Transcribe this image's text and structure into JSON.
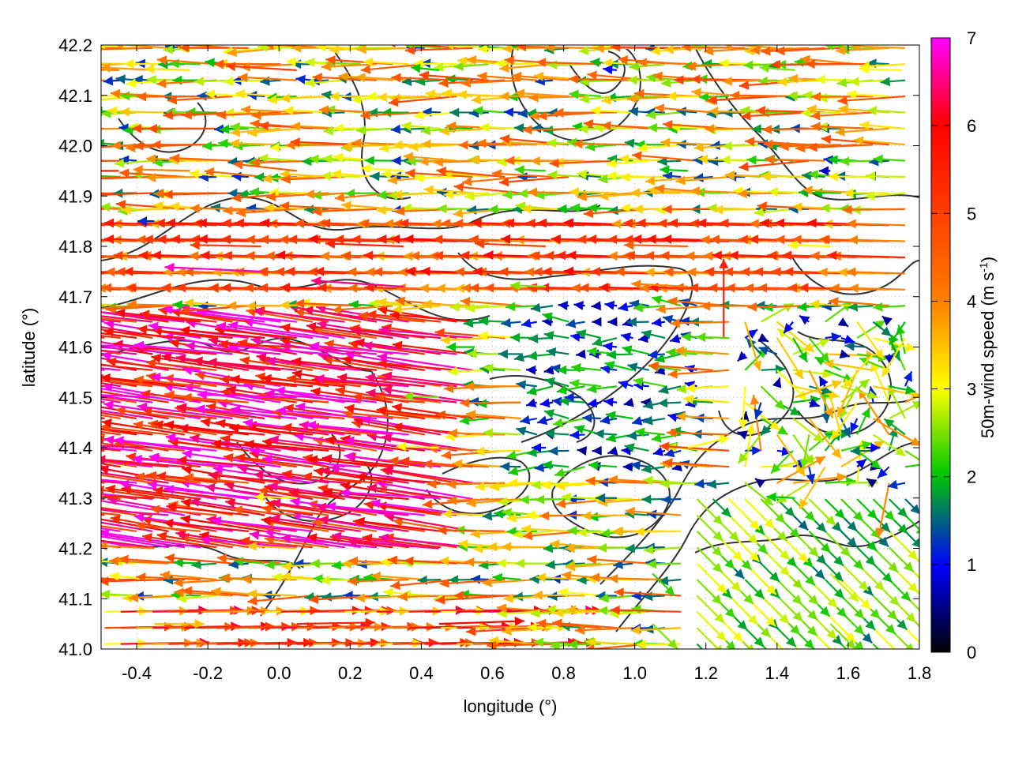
{
  "chart_data": {
    "type": "quiver",
    "title": "",
    "xlabel": "longitude (°)",
    "ylabel": "latitude (°)",
    "xlim": [
      -0.5,
      1.8
    ],
    "ylim": [
      41.0,
      42.2
    ],
    "xticks": [
      -0.4,
      -0.2,
      0.0,
      0.2,
      0.4,
      0.6,
      0.8,
      1.0,
      1.2,
      1.4,
      1.6,
      1.8
    ],
    "xtick_labels": [
      "-0.4",
      "-0.2",
      "0.0",
      "0.2",
      "0.4",
      "0.6",
      "0.8",
      "1.0",
      "1.2",
      "1.4",
      "1.6",
      "1.8"
    ],
    "yticks": [
      41.0,
      41.1,
      41.2,
      41.3,
      41.4,
      41.5,
      41.6,
      41.7,
      41.8,
      41.9,
      42.0,
      42.1,
      42.2
    ],
    "ytick_labels": [
      "41.0",
      "41.1",
      "41.2",
      "41.3",
      "41.4",
      "41.5",
      "41.6",
      "41.7",
      "41.8",
      "41.9",
      "42.0",
      "42.1",
      "42.2"
    ],
    "grid": true,
    "colorbar": {
      "label": "50m-wind speed (m s",
      "label_superscript": "-1",
      "label_suffix": ")",
      "range": [
        0,
        7
      ],
      "ticks": [
        0,
        1,
        2,
        3,
        4,
        5,
        6,
        7
      ],
      "tick_labels": [
        "0",
        "1",
        "2",
        "3",
        "4",
        "5",
        "6",
        "7"
      ],
      "colors": [
        "#000000",
        "#0000ff",
        "#00ff00",
        "#ffff00",
        "#ff8000",
        "#ff0000",
        "#ff00ff"
      ]
    },
    "series": [
      {
        "kind": "vectors",
        "units": "m s-1",
        "points": [
          {
            "lon": -0.45,
            "lat": 42.15,
            "u": -4.2,
            "v": 0.1,
            "speed": 4.2
          },
          {
            "lon": -0.35,
            "lat": 42.15,
            "u": -3.8,
            "v": 0.2,
            "speed": 3.8
          },
          {
            "lon": -0.25,
            "lat": 42.15,
            "u": -3.2,
            "v": 0.1,
            "speed": 3.2
          },
          {
            "lon": 0.05,
            "lat": 42.15,
            "u": -5.0,
            "v": 0.3,
            "speed": 5.0
          },
          {
            "lon": 0.45,
            "lat": 42.15,
            "u": -2.0,
            "v": 0.2,
            "speed": 2.0
          },
          {
            "lon": 0.95,
            "lat": 42.15,
            "u": -1.0,
            "v": 0.1,
            "speed": 1.0
          },
          {
            "lon": 1.45,
            "lat": 42.15,
            "u": -2.5,
            "v": 0.2,
            "speed": 2.5
          },
          {
            "lon": 1.75,
            "lat": 42.15,
            "u": -3.0,
            "v": 0.1,
            "speed": 3.0
          },
          {
            "lon": -0.45,
            "lat": 41.95,
            "u": -5.5,
            "v": 0.0,
            "speed": 5.5
          },
          {
            "lon": -0.25,
            "lat": 41.95,
            "u": -4.0,
            "v": 0.1,
            "speed": 4.0
          },
          {
            "lon": 0.05,
            "lat": 41.95,
            "u": -4.5,
            "v": 0.5,
            "speed": 4.5
          },
          {
            "lon": 0.35,
            "lat": 41.95,
            "u": -3.0,
            "v": 0.2,
            "speed": 3.0
          },
          {
            "lon": 0.75,
            "lat": 41.95,
            "u": -2.2,
            "v": 0.1,
            "speed": 2.2
          },
          {
            "lon": 1.15,
            "lat": 41.95,
            "u": -2.0,
            "v": 0.1,
            "speed": 2.0
          },
          {
            "lon": 1.55,
            "lat": 41.95,
            "u": -0.8,
            "v": 0.0,
            "speed": 0.8
          },
          {
            "lon": -0.35,
            "lat": 41.85,
            "u": -1.2,
            "v": 0.0,
            "speed": 1.2
          },
          {
            "lon": -0.05,
            "lat": 41.8,
            "u": -5.0,
            "v": 0.1,
            "speed": 5.0
          },
          {
            "lon": 0.35,
            "lat": 41.8,
            "u": -5.5,
            "v": 0.2,
            "speed": 5.5
          },
          {
            "lon": 0.75,
            "lat": 41.8,
            "u": -5.0,
            "v": 0.2,
            "speed": 5.0
          },
          {
            "lon": 1.15,
            "lat": 41.8,
            "u": -4.5,
            "v": 0.1,
            "speed": 4.5
          },
          {
            "lon": 1.55,
            "lat": 41.8,
            "u": -3.0,
            "v": 0.1,
            "speed": 3.0
          },
          {
            "lon": -0.05,
            "lat": 41.75,
            "u": -6.5,
            "v": 0.3,
            "speed": 6.8
          },
          {
            "lon": 0.35,
            "lat": 41.72,
            "u": -6.0,
            "v": 0.4,
            "speed": 6.5
          },
          {
            "lon": 0.75,
            "lat": 41.72,
            "u": -2.5,
            "v": 0.1,
            "speed": 2.5
          },
          {
            "lon": 1.15,
            "lat": 41.72,
            "u": -4.0,
            "v": 0.2,
            "speed": 4.0
          },
          {
            "lon": -0.35,
            "lat": 41.6,
            "u": -7.0,
            "v": 0.2,
            "speed": 7.0
          },
          {
            "lon": 0.05,
            "lat": 41.6,
            "u": -5.5,
            "v": 0.2,
            "speed": 5.5
          },
          {
            "lon": 0.55,
            "lat": 41.6,
            "u": -2.0,
            "v": 0.0,
            "speed": 2.0
          },
          {
            "lon": 0.95,
            "lat": 41.6,
            "u": -1.0,
            "v": 0.1,
            "speed": 1.0
          },
          {
            "lon": 1.25,
            "lat": 41.62,
            "u": 0.0,
            "v": 0.6,
            "speed": 5.5
          },
          {
            "lon": 1.65,
            "lat": 41.6,
            "u": -1.5,
            "v": 0.1,
            "speed": 1.5
          },
          {
            "lon": -0.35,
            "lat": 41.5,
            "u": -7.0,
            "v": 0.3,
            "speed": 7.0
          },
          {
            "lon": 0.05,
            "lat": 41.5,
            "u": -7.0,
            "v": 0.2,
            "speed": 7.0
          },
          {
            "lon": 0.45,
            "lat": 41.5,
            "u": -2.5,
            "v": 0.1,
            "speed": 2.5
          },
          {
            "lon": 0.85,
            "lat": 41.5,
            "u": -1.2,
            "v": 0.0,
            "speed": 1.2
          },
          {
            "lon": 1.45,
            "lat": 41.5,
            "u": 1.5,
            "v": 0.5,
            "speed": 3.5
          },
          {
            "lon": -0.35,
            "lat": 41.4,
            "u": -6.5,
            "v": 0.2,
            "speed": 6.5
          },
          {
            "lon": 0.05,
            "lat": 41.4,
            "u": -6.0,
            "v": 0.3,
            "speed": 6.0
          },
          {
            "lon": 0.45,
            "lat": 41.4,
            "u": -3.0,
            "v": 0.1,
            "speed": 3.0
          },
          {
            "lon": 0.75,
            "lat": 41.4,
            "u": -1.0,
            "v": 0.0,
            "speed": 1.0
          },
          {
            "lon": 1.15,
            "lat": 41.4,
            "u": 0.8,
            "v": 0.2,
            "speed": 3.0
          },
          {
            "lon": 1.65,
            "lat": 41.4,
            "u": 1.0,
            "v": 0.0,
            "speed": 1.0
          },
          {
            "lon": -0.35,
            "lat": 41.3,
            "u": -5.5,
            "v": 0.2,
            "speed": 5.5
          },
          {
            "lon": 0.05,
            "lat": 41.3,
            "u": -3.0,
            "v": 0.1,
            "speed": 3.0
          },
          {
            "lon": 0.45,
            "lat": 41.3,
            "u": -7.0,
            "v": 0.4,
            "speed": 7.0
          },
          {
            "lon": 0.95,
            "lat": 41.3,
            "u": -1.5,
            "v": 0.0,
            "speed": 1.5
          },
          {
            "lon": 1.45,
            "lat": 41.3,
            "u": -2.0,
            "v": 0.1,
            "speed": 2.0
          },
          {
            "lon": -0.35,
            "lat": 41.2,
            "u": -4.0,
            "v": 0.2,
            "speed": 4.0
          },
          {
            "lon": 0.05,
            "lat": 41.2,
            "u": -3.5,
            "v": 0.2,
            "speed": 3.5
          },
          {
            "lon": 0.45,
            "lat": 41.2,
            "u": -6.5,
            "v": 0.5,
            "speed": 6.5
          },
          {
            "lon": 1.05,
            "lat": 41.15,
            "u": 0.3,
            "v": -0.3,
            "speed": 2.2
          },
          {
            "lon": 1.55,
            "lat": 41.15,
            "u": 0.4,
            "v": -0.4,
            "speed": 2.8
          },
          {
            "lon": -0.35,
            "lat": 41.05,
            "u": 3.5,
            "v": 0.0,
            "speed": 3.5
          },
          {
            "lon": 0.05,
            "lat": 41.05,
            "u": 5.5,
            "v": 0.1,
            "speed": 5.5
          },
          {
            "lon": 0.45,
            "lat": 41.05,
            "u": 6.0,
            "v": 0.2,
            "speed": 6.0
          },
          {
            "lon": 1.05,
            "lat": 41.05,
            "u": 0.4,
            "v": -0.4,
            "speed": 2.5
          },
          {
            "lon": 1.55,
            "lat": 41.05,
            "u": 0.4,
            "v": -0.4,
            "speed": 2.5
          }
        ]
      }
    ]
  }
}
